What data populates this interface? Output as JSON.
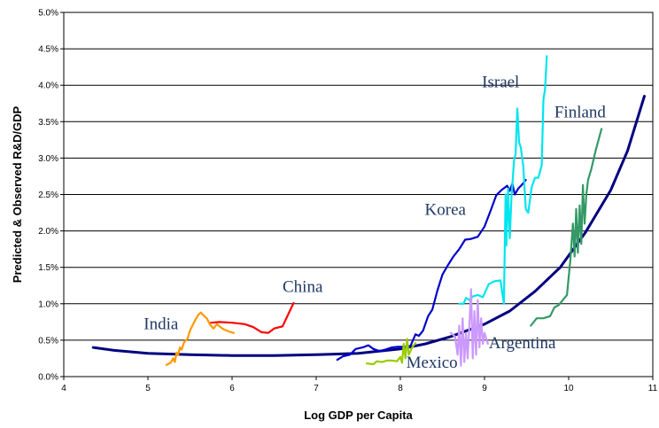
{
  "chart_data": {
    "type": "line",
    "title": "",
    "xlabel": "Log GDP per Capita",
    "ylabel": "Predicted & Observed R&D/GDP",
    "xlim": [
      4,
      11
    ],
    "ylim": [
      0,
      0.05
    ],
    "x_ticks": [
      "4",
      "5",
      "6",
      "7",
      "8",
      "9",
      "10",
      "11"
    ],
    "y_ticks": [
      "0.0%",
      "0.5%",
      "1.0%",
      "1.5%",
      "2.0%",
      "2.5%",
      "3.0%",
      "3.5%",
      "4.0%",
      "4.5%",
      "5.0%"
    ],
    "grid": "horizontal",
    "legend": "none",
    "series": [
      {
        "name": "Predicted",
        "color": "#000080",
        "points": [
          [
            4.35,
            0.004
          ],
          [
            4.6,
            0.0036
          ],
          [
            5.0,
            0.0032
          ],
          [
            5.5,
            0.003
          ],
          [
            6.0,
            0.0029
          ],
          [
            6.5,
            0.0029
          ],
          [
            7.0,
            0.003
          ],
          [
            7.5,
            0.0032
          ],
          [
            8.0,
            0.0038
          ],
          [
            8.3,
            0.0045
          ],
          [
            8.6,
            0.0055
          ],
          [
            9.0,
            0.0072
          ],
          [
            9.3,
            0.009
          ],
          [
            9.6,
            0.0117
          ],
          [
            9.9,
            0.015
          ],
          [
            10.2,
            0.0198
          ],
          [
            10.5,
            0.0256
          ],
          [
            10.7,
            0.031
          ],
          [
            10.9,
            0.0385
          ]
        ]
      },
      {
        "name": "India",
        "color": "#ff9900",
        "points": [
          [
            5.22,
            0.0016
          ],
          [
            5.27,
            0.0019
          ],
          [
            5.3,
            0.0025
          ],
          [
            5.32,
            0.002
          ],
          [
            5.34,
            0.0033
          ],
          [
            5.36,
            0.003
          ],
          [
            5.38,
            0.004
          ],
          [
            5.4,
            0.0037
          ],
          [
            5.43,
            0.0047
          ],
          [
            5.47,
            0.0052
          ],
          [
            5.5,
            0.0063
          ],
          [
            5.55,
            0.0075
          ],
          [
            5.6,
            0.0085
          ],
          [
            5.63,
            0.0088
          ],
          [
            5.67,
            0.0083
          ],
          [
            5.7,
            0.008
          ],
          [
            5.74,
            0.0071
          ],
          [
            5.78,
            0.0066
          ],
          [
            5.82,
            0.0072
          ],
          [
            5.86,
            0.0068
          ],
          [
            5.9,
            0.0065
          ],
          [
            5.96,
            0.0062
          ],
          [
            6.02,
            0.006
          ]
        ]
      },
      {
        "name": "China",
        "color": "#ff0000",
        "points": [
          [
            5.75,
            0.0074
          ],
          [
            5.85,
            0.0075
          ],
          [
            6.0,
            0.0074
          ],
          [
            6.15,
            0.0072
          ],
          [
            6.25,
            0.0068
          ],
          [
            6.35,
            0.0061
          ],
          [
            6.43,
            0.006
          ],
          [
            6.5,
            0.0066
          ],
          [
            6.6,
            0.0069
          ],
          [
            6.73,
            0.0101
          ]
        ]
      },
      {
        "name": "Korea",
        "color": "#0000cc",
        "points": [
          [
            7.25,
            0.0023
          ],
          [
            7.32,
            0.0028
          ],
          [
            7.4,
            0.003
          ],
          [
            7.47,
            0.0038
          ],
          [
            7.55,
            0.004
          ],
          [
            7.62,
            0.0043
          ],
          [
            7.68,
            0.0038
          ],
          [
            7.75,
            0.0035
          ],
          [
            7.82,
            0.0037
          ],
          [
            7.9,
            0.004
          ],
          [
            7.97,
            0.0041
          ],
          [
            8.05,
            0.0041
          ],
          [
            8.12,
            0.0042
          ],
          [
            8.18,
            0.0058
          ],
          [
            8.22,
            0.0056
          ],
          [
            8.27,
            0.0063
          ],
          [
            8.33,
            0.0083
          ],
          [
            8.38,
            0.0092
          ],
          [
            8.44,
            0.0118
          ],
          [
            8.5,
            0.014
          ],
          [
            8.56,
            0.0152
          ],
          [
            8.63,
            0.0165
          ],
          [
            8.7,
            0.0175
          ],
          [
            8.77,
            0.0188
          ],
          [
            8.84,
            0.0189
          ],
          [
            8.92,
            0.0192
          ],
          [
            9.0,
            0.0206
          ],
          [
            9.08,
            0.023
          ],
          [
            9.14,
            0.0249
          ],
          [
            9.2,
            0.0256
          ],
          [
            9.27,
            0.0262
          ],
          [
            9.3,
            0.0255
          ],
          [
            9.33,
            0.0265
          ],
          [
            9.36,
            0.025
          ],
          [
            9.4,
            0.0258
          ],
          [
            9.45,
            0.0264
          ],
          [
            9.49,
            0.027
          ]
        ]
      },
      {
        "name": "Israel",
        "color": "#00e5ee",
        "points": [
          [
            8.7,
            0.01
          ],
          [
            8.75,
            0.01
          ],
          [
            8.78,
            0.0108
          ],
          [
            8.82,
            0.0105
          ],
          [
            8.86,
            0.011
          ],
          [
            8.92,
            0.0112
          ],
          [
            8.98,
            0.0109
          ],
          [
            9.05,
            0.0127
          ],
          [
            9.12,
            0.0131
          ],
          [
            9.19,
            0.0132
          ],
          [
            9.23,
            0.01
          ],
          [
            9.25,
            0.025
          ],
          [
            9.26,
            0.018
          ],
          [
            9.28,
            0.0258
          ],
          [
            9.3,
            0.019
          ],
          [
            9.32,
            0.0245
          ],
          [
            9.35,
            0.0296
          ],
          [
            9.37,
            0.0306
          ],
          [
            9.39,
            0.0368
          ],
          [
            9.41,
            0.0322
          ],
          [
            9.43,
            0.0315
          ],
          [
            9.46,
            0.029
          ],
          [
            9.49,
            0.023
          ],
          [
            9.52,
            0.0225
          ],
          [
            9.56,
            0.026
          ],
          [
            9.6,
            0.0273
          ],
          [
            9.64,
            0.0273
          ],
          [
            9.68,
            0.029
          ],
          [
            9.7,
            0.038
          ],
          [
            9.72,
            0.0395
          ],
          [
            9.74,
            0.044
          ]
        ]
      },
      {
        "name": "Finland",
        "color": "#339966",
        "points": [
          [
            9.55,
            0.007
          ],
          [
            9.62,
            0.008
          ],
          [
            9.7,
            0.008
          ],
          [
            9.78,
            0.0083
          ],
          [
            9.83,
            0.0095
          ],
          [
            9.88,
            0.0098
          ],
          [
            9.93,
            0.0105
          ],
          [
            9.98,
            0.0112
          ],
          [
            10.02,
            0.016
          ],
          [
            10.05,
            0.021
          ],
          [
            10.07,
            0.0165
          ],
          [
            10.09,
            0.023
          ],
          [
            10.11,
            0.017
          ],
          [
            10.13,
            0.0235
          ],
          [
            10.15,
            0.0182
          ],
          [
            10.17,
            0.0263
          ],
          [
            10.19,
            0.021
          ],
          [
            10.21,
            0.025
          ],
          [
            10.23,
            0.027
          ],
          [
            10.27,
            0.0285
          ],
          [
            10.32,
            0.031
          ],
          [
            10.39,
            0.034
          ]
        ]
      },
      {
        "name": "Argentina",
        "color": "#cc99ff",
        "points": [
          [
            8.6,
            0.006
          ],
          [
            8.65,
            0.0055
          ],
          [
            8.68,
            0.003
          ],
          [
            8.7,
            0.007
          ],
          [
            8.72,
            0.0015
          ],
          [
            8.74,
            0.008
          ],
          [
            8.76,
            0.002
          ],
          [
            8.78,
            0.006
          ],
          [
            8.8,
            0.0025
          ],
          [
            8.82,
            0.007
          ],
          [
            8.84,
            0.012
          ],
          [
            8.86,
            0.0025
          ],
          [
            8.88,
            0.009
          ],
          [
            8.9,
            0.003
          ],
          [
            8.92,
            0.0105
          ],
          [
            8.94,
            0.004
          ],
          [
            8.96,
            0.008
          ],
          [
            8.98,
            0.0045
          ],
          [
            9.0,
            0.006
          ],
          [
            9.04,
            0.0045
          ]
        ]
      },
      {
        "name": "Mexico",
        "color": "#99cc00",
        "points": [
          [
            7.6,
            0.0018
          ],
          [
            7.68,
            0.0017
          ],
          [
            7.72,
            0.0021
          ],
          [
            7.78,
            0.002
          ],
          [
            7.84,
            0.0022
          ],
          [
            7.9,
            0.0022
          ],
          [
            7.96,
            0.0021
          ],
          [
            8.0,
            0.0027
          ],
          [
            8.02,
            0.0019
          ],
          [
            8.04,
            0.0045
          ],
          [
            8.06,
            0.0025
          ],
          [
            8.08,
            0.0052
          ],
          [
            8.1,
            0.003
          ],
          [
            8.14,
            0.004
          ],
          [
            8.18,
            0.0046
          ]
        ]
      }
    ],
    "annotations": [
      {
        "text": "India",
        "x": 4.95,
        "y": 0.0065
      },
      {
        "text": "China",
        "x": 6.6,
        "y": 0.0116
      },
      {
        "text": "Korea",
        "x": 8.29,
        "y": 0.0222
      },
      {
        "text": "Israel",
        "x": 8.97,
        "y": 0.0397
      },
      {
        "text": "Finland",
        "x": 9.83,
        "y": 0.0356
      },
      {
        "text": "Argentina",
        "x": 9.05,
        "y": 0.0039
      },
      {
        "text": "Mexico",
        "x": 8.07,
        "y": 0.0012
      }
    ]
  }
}
